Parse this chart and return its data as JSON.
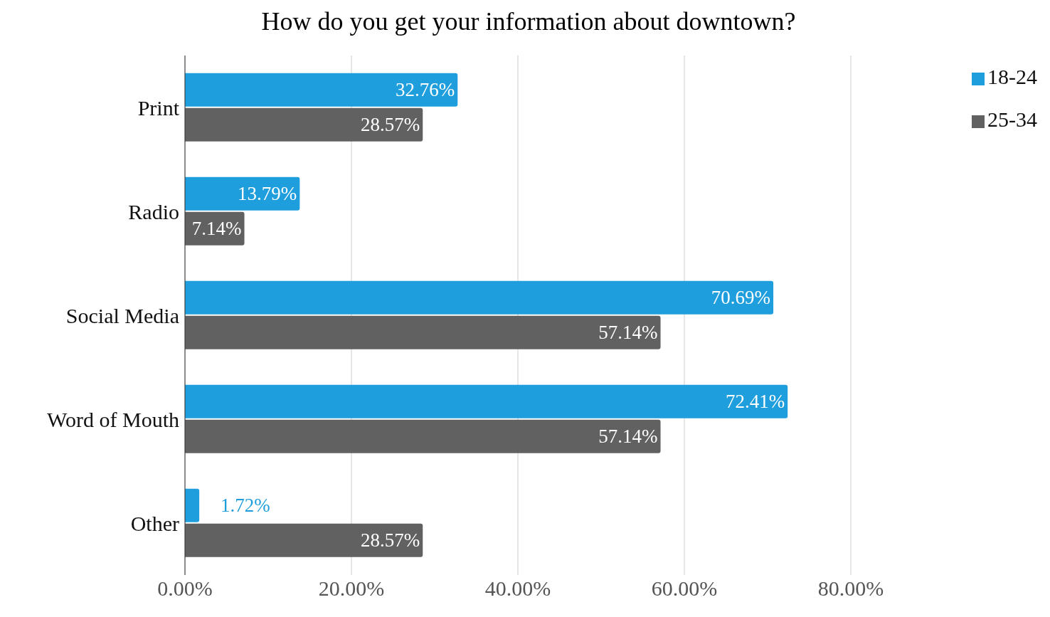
{
  "chart_data": {
    "type": "bar",
    "orientation": "horizontal",
    "title": "How do you get your information about downtown?",
    "categories": [
      "Print",
      "Radio",
      "Social Media",
      "Word of Mouth",
      "Other"
    ],
    "series": [
      {
        "name": "18-24",
        "color": "#1f9ede",
        "values": [
          32.76,
          13.79,
          70.69,
          72.41,
          1.72
        ],
        "value_labels": [
          "32.76%",
          "13.79%",
          "70.69%",
          "72.41%",
          "1.72%"
        ]
      },
      {
        "name": "25-34",
        "color": "#616161",
        "values": [
          28.57,
          7.14,
          57.14,
          57.14,
          28.57
        ],
        "value_labels": [
          "28.57%",
          "7.14%",
          "57.14%",
          "57.14%",
          "28.57%"
        ]
      }
    ],
    "xlim": [
      0,
      80
    ],
    "xticks": [
      {
        "value": 0,
        "label": "0.00%"
      },
      {
        "value": 20,
        "label": "20.00%"
      },
      {
        "value": 40,
        "label": "40.00%"
      },
      {
        "value": 60,
        "label": "60.00%"
      },
      {
        "value": 80,
        "label": "80.00%"
      }
    ],
    "grid": "x",
    "legend": "top right"
  }
}
